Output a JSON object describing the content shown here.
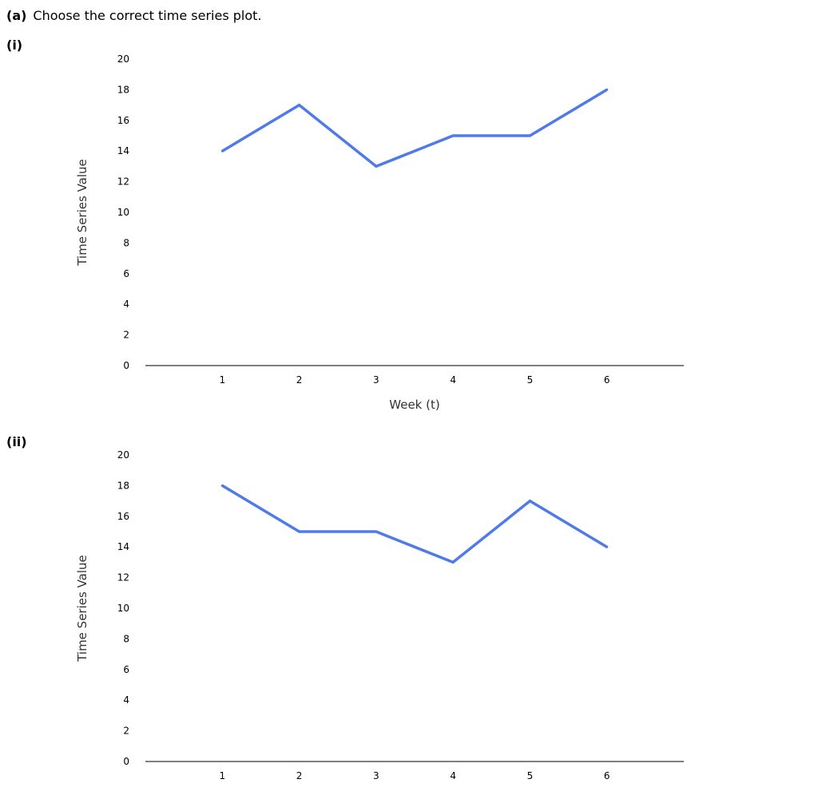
{
  "question": {
    "label": "(a)",
    "text": "Choose the correct time series plot."
  },
  "options": [
    {
      "label": "(i)"
    },
    {
      "label": "(ii)"
    }
  ],
  "colors": {
    "line": "#4f7be8",
    "axis": "#333333",
    "text": "#000000"
  },
  "chart_data": [
    {
      "type": "line",
      "title": "",
      "xlabel": "Week (t)",
      "ylabel": "Time Series Value",
      "x": [
        1,
        2,
        3,
        4,
        5,
        6
      ],
      "values": [
        14,
        17,
        13,
        15,
        15,
        18
      ],
      "yticks": [
        0,
        2,
        4,
        6,
        8,
        10,
        12,
        14,
        16,
        18,
        20
      ],
      "xticks": [
        1,
        2,
        3,
        4,
        5,
        6
      ],
      "ylim": [
        0,
        20
      ],
      "xlim": [
        0,
        7
      ],
      "grid": false
    },
    {
      "type": "line",
      "title": "",
      "xlabel": "",
      "ylabel": "Time Series Value",
      "x": [
        1,
        2,
        3,
        4,
        5,
        6
      ],
      "values": [
        18,
        15,
        15,
        13,
        17,
        14
      ],
      "yticks": [
        0,
        2,
        4,
        6,
        8,
        10,
        12,
        14,
        16,
        18,
        20
      ],
      "xticks": [
        1,
        2,
        3,
        4,
        5,
        6
      ],
      "ylim": [
        0,
        20
      ],
      "xlim": [
        0,
        7
      ],
      "grid": false
    }
  ]
}
